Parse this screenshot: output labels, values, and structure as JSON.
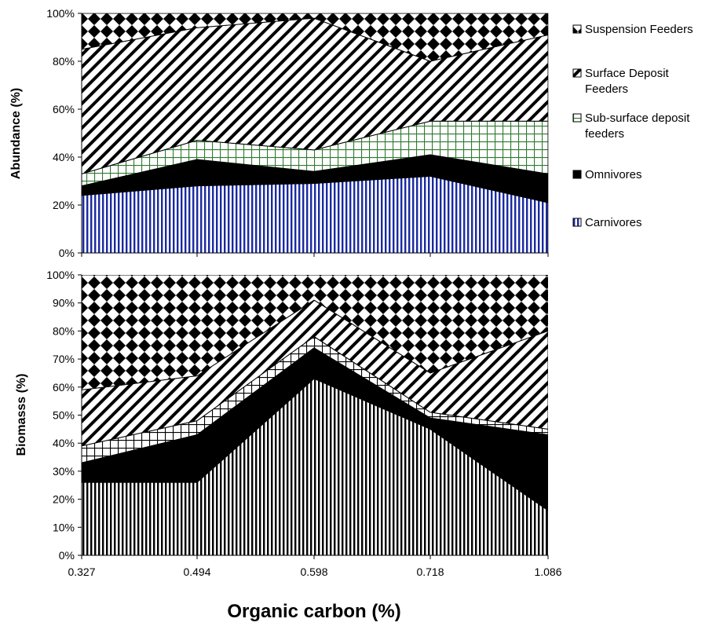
{
  "chart_data": [
    {
      "type": "area",
      "stacked": true,
      "ylabel": "Abundance (%)",
      "ylim": [
        0,
        100
      ],
      "yticks": [
        "0%",
        "20%",
        "40%",
        "60%",
        "80%",
        "100%"
      ],
      "categories": [
        "0.327",
        "0.494",
        "0.598",
        "0.718",
        "1.086"
      ],
      "series": [
        {
          "name": "Carnivores",
          "values": [
            24,
            28,
            29,
            32,
            21
          ]
        },
        {
          "name": "Omnivores",
          "values": [
            4,
            11,
            5,
            9,
            12
          ]
        },
        {
          "name": "Sub-surface deposit feeders",
          "values": [
            5,
            8,
            9,
            14,
            22
          ]
        },
        {
          "name": "Surface Deposit Feeders",
          "values": [
            52,
            47,
            55,
            25,
            36
          ]
        },
        {
          "name": "Suspension Feeders",
          "values": [
            15,
            6,
            2,
            20,
            9
          ]
        }
      ]
    },
    {
      "type": "area",
      "stacked": true,
      "ylabel": "Biomasss (%)",
      "xlabel": "Organic carbon (%)",
      "ylim": [
        0,
        100
      ],
      "yticks": [
        "0%",
        "10%",
        "20%",
        "30%",
        "40%",
        "50%",
        "60%",
        "70%",
        "80%",
        "90%",
        "100%"
      ],
      "categories": [
        "0.327",
        "0.494",
        "0.598",
        "0.718",
        "1.086"
      ],
      "series": [
        {
          "name": "Carnivores",
          "values": [
            26,
            26,
            63,
            45,
            16
          ]
        },
        {
          "name": "Omnivores",
          "values": [
            7,
            17,
            11,
            4,
            27
          ]
        },
        {
          "name": "Sub-surface deposit feeders",
          "values": [
            6,
            5,
            4,
            2,
            2
          ]
        },
        {
          "name": "Surface Deposit Feeders",
          "values": [
            20,
            16,
            13,
            14,
            35
          ]
        },
        {
          "name": "Suspension Feeders",
          "values": [
            41,
            36,
            9,
            35,
            20
          ]
        }
      ]
    }
  ],
  "legend": {
    "position": "right",
    "items": [
      {
        "label_lines": [
          "Suspension Feeders"
        ],
        "pattern": "diamond-checker"
      },
      {
        "label_lines": [
          "Surface Deposit",
          "Feeders"
        ],
        "pattern": "diagonal-hatch"
      },
      {
        "label_lines": [
          "Sub-surface deposit",
          "feeders"
        ],
        "pattern": "grid-green"
      },
      {
        "label_lines": [
          "Omnivores"
        ],
        "pattern": "solid-black"
      },
      {
        "label_lines": [
          "Carnivores"
        ],
        "pattern": "vertical-blue"
      }
    ]
  },
  "colors": {
    "carnivores_top": "#1a2aa0",
    "grid_green": "#2f7a2f",
    "solid": "#000000",
    "background": "#ffffff"
  }
}
